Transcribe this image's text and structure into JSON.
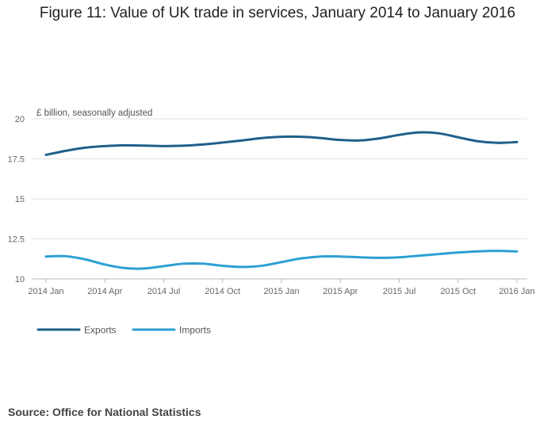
{
  "chart_data": {
    "type": "line",
    "title": "Figure 11: Value of UK trade in services, January 2014 to January 2016",
    "ylabel": "£ billion, seasonally adjusted",
    "xlabel": "",
    "ylim": [
      10,
      20
    ],
    "yticks": [
      10,
      12.5,
      15,
      17.5,
      20
    ],
    "ytick_labels": [
      "10",
      "12.5",
      "15",
      "17.5",
      "20"
    ],
    "x": [
      "2014 Jan",
      "2014 Feb",
      "2014 Mar",
      "2014 Apr",
      "2014 May",
      "2014 Jun",
      "2014 Jul",
      "2014 Aug",
      "2014 Sep",
      "2014 Oct",
      "2014 Nov",
      "2014 Dec",
      "2015 Jan",
      "2015 Feb",
      "2015 Mar",
      "2015 Apr",
      "2015 May",
      "2015 Jun",
      "2015 Jul",
      "2015 Aug",
      "2015 Sep",
      "2015 Oct",
      "2015 Nov",
      "2015 Dec",
      "2016 Jan"
    ],
    "xtick_labels": [
      "2014 Jan",
      "2014 Apr",
      "2014 Jul",
      "2014 Oct",
      "2015 Jan",
      "2015 Apr",
      "2015 Jul",
      "2015 Oct",
      "2016 Jan"
    ],
    "xtick_indices": [
      0,
      3,
      6,
      9,
      12,
      15,
      18,
      21,
      24
    ],
    "grid": true,
    "legend_position": "bottom-left",
    "series": [
      {
        "name": "Exports",
        "color": "#1f5f8b",
        "values": [
          17.75,
          18.0,
          18.2,
          18.3,
          18.35,
          18.33,
          18.3,
          18.32,
          18.4,
          18.52,
          18.65,
          18.8,
          18.88,
          18.88,
          18.8,
          18.68,
          18.65,
          18.78,
          19.0,
          19.15,
          19.1,
          18.85,
          18.6,
          18.5,
          18.55
        ]
      },
      {
        "name": "Imports",
        "color": "#2ca0d3",
        "values": [
          11.4,
          11.42,
          11.22,
          10.9,
          10.68,
          10.65,
          10.8,
          10.95,
          10.95,
          10.82,
          10.75,
          10.82,
          11.05,
          11.28,
          11.4,
          11.4,
          11.35,
          11.32,
          11.35,
          11.45,
          11.55,
          11.65,
          11.72,
          11.75,
          11.72
        ]
      }
    ]
  },
  "source": "Source: Office for National Statistics"
}
